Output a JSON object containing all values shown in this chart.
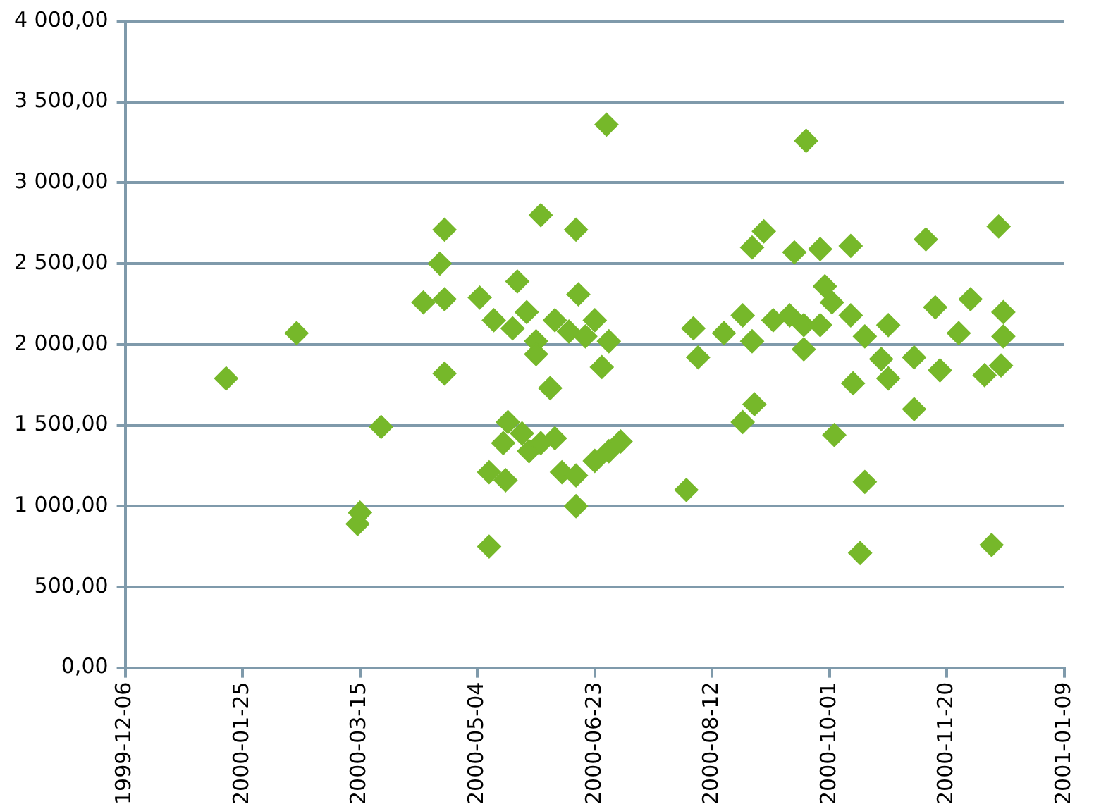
{
  "chart_data": {
    "type": "scatter",
    "marker": "diamond",
    "grid": "y",
    "legend": false,
    "xlim": [
      "1999-12-06",
      "2001-01-09"
    ],
    "xticks": [
      "1999-12-06",
      "2000-01-25",
      "2000-03-15",
      "2000-05-04",
      "2000-06-23",
      "2000-08-12",
      "2000-10-01",
      "2000-11-20",
      "2001-01-09"
    ],
    "ylim": [
      0,
      4000
    ],
    "yticks": [
      {
        "value": 0,
        "label": "0,00"
      },
      {
        "value": 500,
        "label": "500,00"
      },
      {
        "value": 1000,
        "label": "1 000,00"
      },
      {
        "value": 1500,
        "label": "1 500,00"
      },
      {
        "value": 2000,
        "label": "2 000,00"
      },
      {
        "value": 2500,
        "label": "2 500,00"
      },
      {
        "value": 3000,
        "label": "3 000,00"
      },
      {
        "value": 3500,
        "label": "3 500,00"
      },
      {
        "value": 4000,
        "label": "4 000,00"
      }
    ],
    "series": [
      {
        "color": "#76b82a",
        "x": [
          "2000-01-18",
          "2000-02-17",
          "2000-03-14",
          "2000-03-15",
          "2000-03-24",
          "2000-04-11",
          "2000-04-18",
          "2000-04-20",
          "2000-04-20",
          "2000-04-20",
          "2000-06-28",
          "2000-05-31",
          "2000-06-15",
          "2000-05-05",
          "2000-05-21",
          "2000-05-11",
          "2000-05-19",
          "2000-05-25",
          "2000-05-29",
          "2000-06-06",
          "2000-06-12",
          "2000-06-16",
          "2000-06-19",
          "2000-06-23",
          "2000-05-29",
          "2000-06-29",
          "2000-06-26",
          "2000-06-04",
          "2000-05-17",
          "2000-05-15",
          "2000-05-23",
          "2000-05-26",
          "2000-05-31",
          "2000-06-06",
          "2000-05-09",
          "2000-05-16",
          "2000-06-09",
          "2000-06-15",
          "2000-06-23",
          "2000-06-29",
          "2000-07-04",
          "2000-06-15",
          "2000-05-09",
          "2000-09-21",
          "2000-09-03",
          "2000-08-29",
          "2000-09-16",
          "2000-09-27",
          "2000-10-10",
          "2000-08-04",
          "2000-08-06",
          "2000-08-17",
          "2000-08-25",
          "2000-08-29",
          "2000-09-07",
          "2000-09-14",
          "2000-09-20",
          "2000-09-20",
          "2000-09-27",
          "2000-09-29",
          "2000-10-02",
          "2000-10-10",
          "2000-10-16",
          "2000-10-11",
          "2000-08-25",
          "2000-08-30",
          "2000-10-03",
          "2000-08-01",
          "2000-10-14",
          "2000-10-16",
          "2000-11-11",
          "2000-12-12",
          "2000-10-26",
          "2000-10-23",
          "2000-10-26",
          "2000-11-06",
          "2000-11-15",
          "2000-11-17",
          "2000-11-30",
          "2000-11-25",
          "2000-12-06",
          "2000-12-14",
          "2000-12-14",
          "2000-12-13",
          "2000-11-06",
          "2000-12-09"
        ],
        "values": [
          1790,
          2070,
          890,
          960,
          1490,
          2260,
          2500,
          2710,
          2280,
          1820,
          3360,
          2800,
          2710,
          2290,
          2390,
          2150,
          2100,
          2200,
          2020,
          2150,
          2080,
          2310,
          2050,
          2150,
          1940,
          2020,
          1860,
          1730,
          1520,
          1390,
          1450,
          1340,
          1390,
          1420,
          1210,
          1160,
          1210,
          1190,
          1280,
          1340,
          1400,
          1000,
          750,
          3260,
          2700,
          2600,
          2570,
          2590,
          2610,
          2100,
          1920,
          2070,
          2180,
          2020,
          2150,
          2180,
          2120,
          1970,
          2120,
          2360,
          2260,
          2180,
          2050,
          1760,
          1520,
          1630,
          1440,
          1100,
          710,
          1150,
          2650,
          2730,
          2120,
          1910,
          1790,
          1920,
          2230,
          1840,
          2280,
          2070,
          1810,
          2200,
          2050,
          1870,
          1600,
          760
        ]
      }
    ]
  }
}
